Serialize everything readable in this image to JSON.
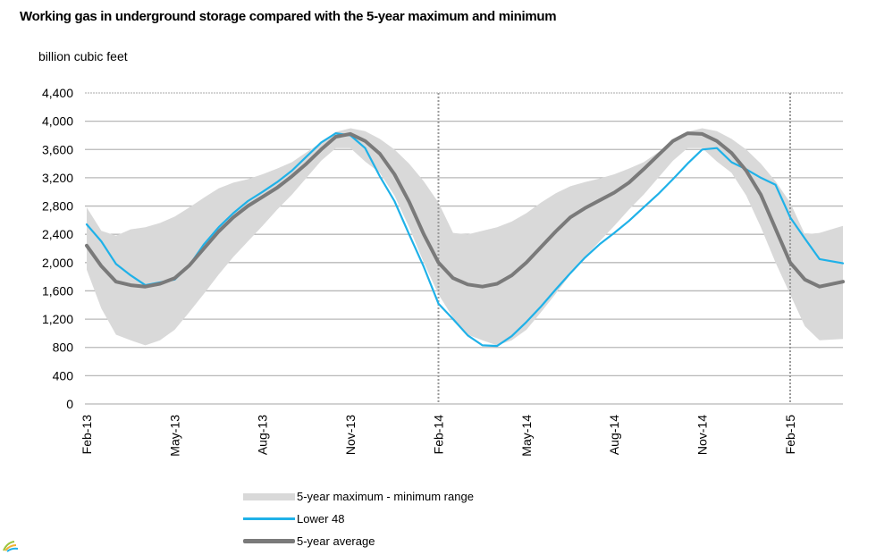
{
  "chart_data": {
    "type": "area",
    "title": "Working gas in underground storage compared with the  5-year maximum and minimum",
    "ylabel": "billion  cubic feet",
    "xlabel": "",
    "ylim": [
      0,
      4400
    ],
    "yticks": [
      0,
      400,
      800,
      1200,
      1600,
      2000,
      2400,
      2800,
      3200,
      3600,
      4000,
      4400
    ],
    "ytick_labels": [
      "0",
      "400",
      "800",
      "1,200",
      "1,600",
      "2,000",
      "2,400",
      "2,800",
      "3,200",
      "3,600",
      "4,000",
      "4,400"
    ],
    "x_start_month_index": 0,
    "x_end_month_index": 25.8,
    "xticks": [
      0,
      3,
      6,
      9,
      12,
      15,
      18,
      21,
      24
    ],
    "xtick_labels": [
      "Feb-13",
      "May-13",
      "Aug-13",
      "Nov-13",
      "Feb-14",
      "May-14",
      "Aug-14",
      "Nov-14",
      "Feb-15"
    ],
    "year_separators_month_index": [
      12,
      24
    ],
    "grid": true,
    "legend_position": "bottom",
    "months": [
      0,
      0.5,
      1,
      1.5,
      2,
      2.5,
      3,
      3.5,
      4,
      4.5,
      5,
      5.5,
      6,
      6.5,
      7,
      7.5,
      8,
      8.5,
      9,
      9.5,
      10,
      10.5,
      11,
      11.5,
      12,
      12.5,
      13,
      13.5,
      14,
      14.5,
      15,
      15.5,
      16,
      16.5,
      17,
      17.5,
      18,
      18.5,
      19,
      19.5,
      20,
      20.5,
      21,
      21.5,
      22,
      22.5,
      23,
      23.5,
      24,
      24.5,
      25,
      25.8
    ],
    "series": [
      {
        "name": "5-year maximum - minimum range",
        "kind": "band",
        "color": "#d9d9d9",
        "max": [
          2780,
          2450,
          2380,
          2470,
          2500,
          2560,
          2650,
          2780,
          2920,
          3050,
          3130,
          3180,
          3250,
          3330,
          3420,
          3560,
          3700,
          3850,
          3900,
          3860,
          3750,
          3600,
          3400,
          3150,
          2850,
          2420,
          2400,
          2450,
          2500,
          2580,
          2700,
          2850,
          2980,
          3080,
          3140,
          3190,
          3250,
          3330,
          3420,
          3560,
          3700,
          3850,
          3900,
          3860,
          3750,
          3600,
          3400,
          3150,
          2850,
          2400,
          2420,
          2520
        ],
        "min": [
          1900,
          1350,
          980,
          900,
          830,
          900,
          1050,
          1300,
          1560,
          1830,
          2080,
          2300,
          2520,
          2750,
          2960,
          3200,
          3440,
          3620,
          3620,
          3430,
          3270,
          2950,
          2500,
          2000,
          1550,
          1220,
          980,
          900,
          830,
          900,
          1050,
          1300,
          1560,
          1830,
          2080,
          2300,
          2520,
          2750,
          2960,
          3200,
          3440,
          3620,
          3620,
          3430,
          3270,
          2950,
          2500,
          2000,
          1550,
          1100,
          900,
          920
        ]
      },
      {
        "name": "Lower 48",
        "kind": "line",
        "color": "#1fb1e8",
        "values": [
          2540,
          2300,
          1980,
          1820,
          1680,
          1720,
          1760,
          1960,
          2260,
          2500,
          2700,
          2870,
          3000,
          3140,
          3300,
          3500,
          3700,
          3830,
          3800,
          3620,
          3220,
          2870,
          2400,
          1940,
          1420,
          1200,
          970,
          830,
          820,
          960,
          1160,
          1380,
          1620,
          1850,
          2070,
          2260,
          2420,
          2590,
          2780,
          2970,
          3180,
          3400,
          3600,
          3620,
          3420,
          3320,
          3200,
          3100,
          2640,
          2340,
          2050,
          1990
        ]
      },
      {
        "name": "5-year average",
        "kind": "line",
        "color": "#7a7a7a",
        "values": [
          2240,
          1950,
          1730,
          1680,
          1660,
          1700,
          1780,
          1960,
          2200,
          2440,
          2640,
          2800,
          2930,
          3060,
          3220,
          3400,
          3600,
          3780,
          3820,
          3720,
          3540,
          3250,
          2860,
          2400,
          2000,
          1780,
          1690,
          1660,
          1700,
          1820,
          2000,
          2220,
          2440,
          2640,
          2770,
          2880,
          2990,
          3130,
          3320,
          3520,
          3720,
          3830,
          3820,
          3720,
          3550,
          3300,
          2960,
          2480,
          2000,
          1760,
          1660,
          1730
        ]
      }
    ]
  },
  "legend": {
    "items": [
      {
        "label": "5-year maximum - minimum range",
        "swatch": "band"
      },
      {
        "label": "Lower 48",
        "swatch": "line"
      },
      {
        "label": "5-year average",
        "swatch": "thick-line"
      }
    ]
  },
  "logo": {
    "icon": "eia-logo-icon"
  }
}
